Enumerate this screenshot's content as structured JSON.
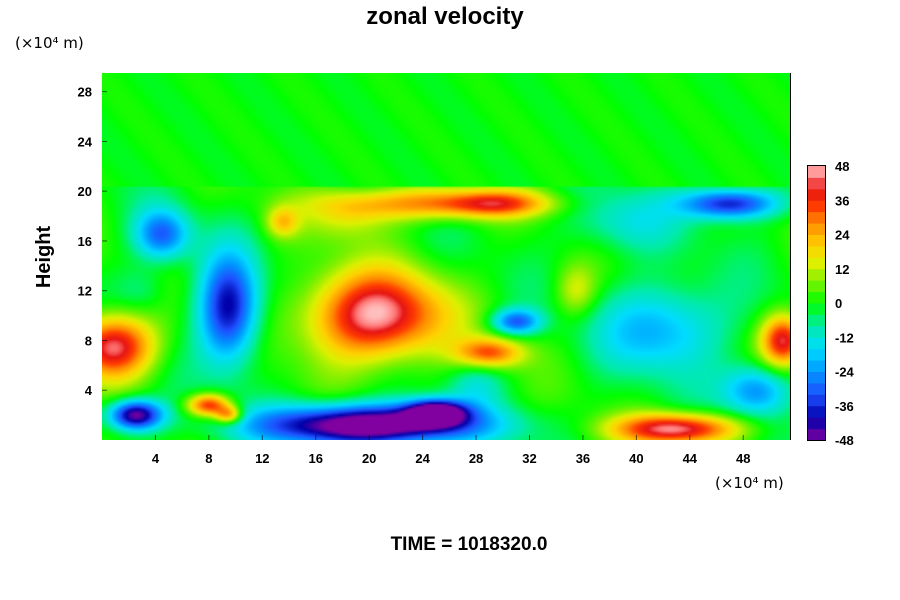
{
  "chart_data": {
    "type": "heatmap",
    "title": "zonal velocity",
    "xlabel": "",
    "ylabel": "Height",
    "x_unit": "(×10⁴ m)",
    "y_unit": "(×10⁴ m)",
    "xlim": [
      0,
      51.5
    ],
    "ylim": [
      0,
      29.5
    ],
    "x_ticks": [
      "4",
      "8",
      "12",
      "16",
      "20",
      "24",
      "28",
      "32",
      "36",
      "40",
      "44",
      "48"
    ],
    "y_ticks": [
      "4",
      "8",
      "12",
      "16",
      "20",
      "24",
      "28"
    ],
    "colorbar": {
      "min": -48,
      "max": 48,
      "ticks": [
        "48",
        "36",
        "24",
        "12",
        "0",
        "-12",
        "-24",
        "-36",
        "-48"
      ]
    },
    "time_label": "TIME = 1018320.0",
    "upper_layer": {
      "y_range": [
        20.3,
        29.5
      ],
      "value": 0
    },
    "features": [
      {
        "x": 20.5,
        "y": 10.0,
        "sx": 5.0,
        "sy": 3.5,
        "value": 48
      },
      {
        "x": 29.0,
        "y": 7.0,
        "sx": 2.5,
        "sy": 1.2,
        "value": 32
      },
      {
        "x": 24.0,
        "y": 19.0,
        "sx": 7.0,
        "sy": 1.3,
        "value": 26
      },
      {
        "x": 29.5,
        "y": 19.0,
        "sx": 4.0,
        "sy": 1.0,
        "value": 24
      },
      {
        "x": 0.8,
        "y": 7.5,
        "sx": 3.0,
        "sy": 2.5,
        "value": 46
      },
      {
        "x": 51.0,
        "y": 8.0,
        "sx": 1.6,
        "sy": 2.0,
        "value": 40
      },
      {
        "x": 43.0,
        "y": 0.9,
        "sx": 4.5,
        "sy": 1.2,
        "value": 46
      },
      {
        "x": 8.0,
        "y": 2.8,
        "sx": 1.6,
        "sy": 0.9,
        "value": 38
      },
      {
        "x": 9.5,
        "y": 2.0,
        "sx": 1.0,
        "sy": 0.7,
        "value": 28
      },
      {
        "x": 13.5,
        "y": 17.5,
        "sx": 1.2,
        "sy": 1.2,
        "value": 18
      },
      {
        "x": 18.5,
        "y": 18.0,
        "sx": 3.0,
        "sy": 2.0,
        "value": 12
      },
      {
        "x": 35.5,
        "y": 12.0,
        "sx": 1.5,
        "sy": 2.0,
        "value": 14
      },
      {
        "x": 9.5,
        "y": 10.5,
        "sx": 2.2,
        "sy": 4.2,
        "value": -42
      },
      {
        "x": 20.0,
        "y": 1.2,
        "sx": 8.0,
        "sy": 1.6,
        "value": -60
      },
      {
        "x": 25.0,
        "y": 2.2,
        "sx": 2.2,
        "sy": 1.0,
        "value": -50
      },
      {
        "x": 47.0,
        "y": 19.0,
        "sx": 3.5,
        "sy": 1.2,
        "value": -40
      },
      {
        "x": 4.5,
        "y": 16.5,
        "sx": 2.0,
        "sy": 2.0,
        "value": -30
      },
      {
        "x": 42.0,
        "y": 9.0,
        "sx": 4.5,
        "sy": 3.5,
        "value": -22
      },
      {
        "x": 49.0,
        "y": 4.0,
        "sx": 2.5,
        "sy": 2.0,
        "value": -26
      },
      {
        "x": 31.0,
        "y": 9.5,
        "sx": 1.8,
        "sy": 1.0,
        "value": -30
      },
      {
        "x": 39.0,
        "y": 17.5,
        "sx": 4.0,
        "sy": 2.5,
        "value": -12
      },
      {
        "x": 28.0,
        "y": 4.5,
        "sx": 2.0,
        "sy": 2.0,
        "value": -10
      },
      {
        "x": 2.5,
        "y": 2.0,
        "sx": 2.0,
        "sy": 1.2,
        "value": -50
      },
      {
        "x": 3.0,
        "y": 12.0,
        "sx": 2.0,
        "sy": 2.0,
        "value": -8
      }
    ]
  }
}
